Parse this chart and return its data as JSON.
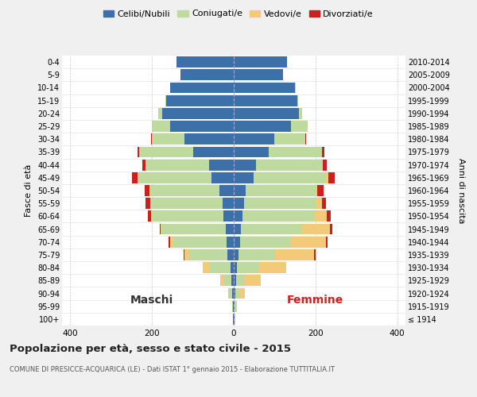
{
  "age_groups": [
    "100+",
    "95-99",
    "90-94",
    "85-89",
    "80-84",
    "75-79",
    "70-74",
    "65-69",
    "60-64",
    "55-59",
    "50-54",
    "45-49",
    "40-44",
    "35-39",
    "30-34",
    "25-29",
    "20-24",
    "15-19",
    "10-14",
    "5-9",
    "0-4"
  ],
  "birth_years": [
    "≤ 1914",
    "1915-1919",
    "1920-1924",
    "1925-1929",
    "1930-1934",
    "1935-1939",
    "1940-1944",
    "1945-1949",
    "1950-1954",
    "1955-1959",
    "1960-1964",
    "1965-1969",
    "1970-1974",
    "1975-1979",
    "1980-1984",
    "1985-1989",
    "1990-1994",
    "1995-1999",
    "2000-2004",
    "2005-2009",
    "2010-2014"
  ],
  "males": {
    "celibi": [
      1,
      1,
      3,
      5,
      8,
      15,
      18,
      20,
      25,
      28,
      35,
      55,
      60,
      100,
      120,
      155,
      175,
      165,
      155,
      130,
      140
    ],
    "coniugati": [
      1,
      2,
      8,
      20,
      50,
      95,
      130,
      155,
      175,
      175,
      170,
      180,
      155,
      130,
      80,
      45,
      10,
      3,
      1,
      0,
      0
    ],
    "vedovi": [
      0,
      0,
      2,
      8,
      18,
      10,
      8,
      3,
      2,
      2,
      1,
      1,
      1,
      1,
      0,
      0,
      0,
      0,
      0,
      0,
      0
    ],
    "divorziati": [
      0,
      0,
      0,
      0,
      0,
      2,
      3,
      3,
      8,
      10,
      12,
      12,
      8,
      5,
      2,
      0,
      0,
      0,
      0,
      0,
      0
    ]
  },
  "females": {
    "nubili": [
      1,
      2,
      3,
      5,
      8,
      12,
      15,
      18,
      22,
      25,
      30,
      48,
      55,
      85,
      100,
      140,
      160,
      155,
      150,
      120,
      130
    ],
    "coniugate": [
      1,
      3,
      10,
      22,
      55,
      90,
      125,
      148,
      175,
      175,
      170,
      178,
      160,
      130,
      75,
      40,
      8,
      2,
      1,
      0,
      0
    ],
    "vedove": [
      1,
      3,
      15,
      40,
      65,
      95,
      85,
      70,
      30,
      15,
      5,
      5,
      2,
      1,
      0,
      0,
      0,
      0,
      0,
      0,
      0
    ],
    "divorziate": [
      0,
      0,
      0,
      0,
      0,
      3,
      5,
      5,
      10,
      10,
      15,
      15,
      10,
      5,
      2,
      0,
      0,
      0,
      0,
      0,
      0
    ]
  },
  "colors": {
    "celibi": "#3d6fa8",
    "coniugati": "#bfda9f",
    "vedovi": "#f5c97a",
    "divorziati": "#cc2020"
  },
  "xlim": 420,
  "title": "Popolazione per età, sesso e stato civile - 2015",
  "subtitle": "COMUNE DI PRESICCE-ACQUARICA (LE) - Dati ISTAT 1° gennaio 2015 - Elaborazione TUTTITALIA.IT",
  "xlabel_left": "Maschi",
  "xlabel_right": "Femmine",
  "ylabel": "Fasce di età",
  "ylabel_right": "Anni di nascita",
  "bg_color": "#f0f0f0",
  "plot_bg_color": "#ffffff"
}
